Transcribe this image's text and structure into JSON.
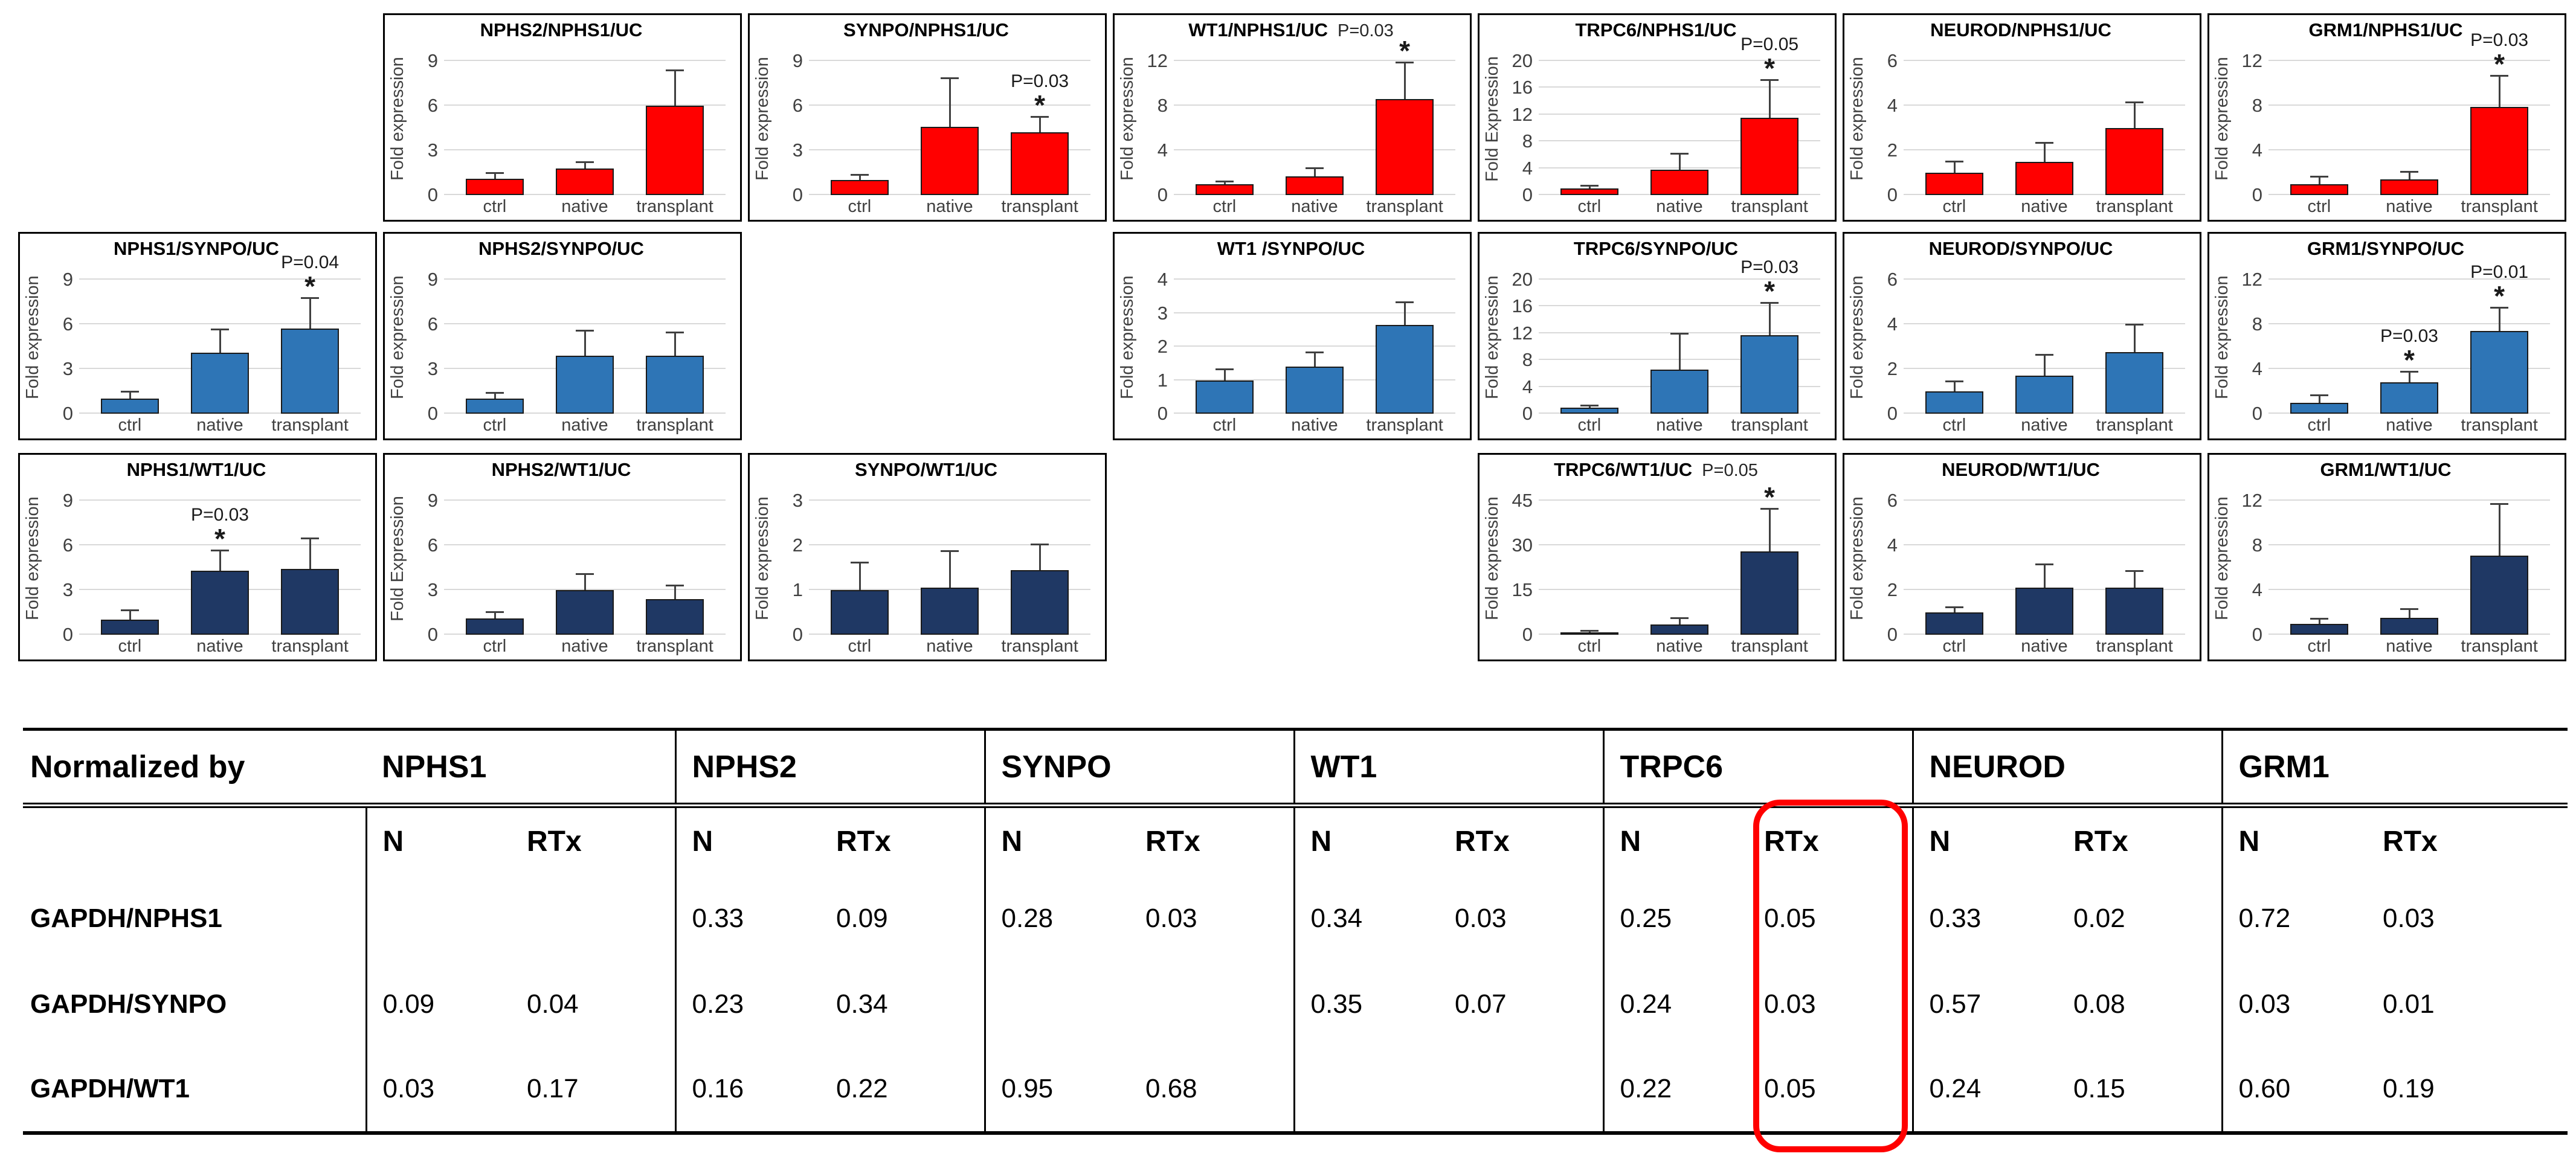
{
  "figure": {
    "description": "Fold expression bar charts of podocyte genes normalized by NPHS1 (red), SYNPO (blue) and WT1 (navy), with P-value summary table",
    "colors": {
      "nphs1_row": "#FF0000",
      "synpo_row": "#2E75B6",
      "wt1_row": "#1F3864",
      "highlight": "#FF0000",
      "gridline": "#D9D9D9"
    }
  },
  "chart_data": [
    {
      "type": "bar",
      "title": "NPHS2/NPHS1/UC",
      "title_p": "",
      "ylabel": "Fold expression",
      "yticks": [
        0,
        3,
        6,
        9
      ],
      "color": "#FF0000",
      "grid": {
        "row": 0,
        "col": 1
      },
      "categories": [
        "ctrl",
        "native",
        "transplant"
      ],
      "bars": [
        {
          "value": 1.1,
          "err": 0.3
        },
        {
          "value": 1.8,
          "err": 0.35
        },
        {
          "value": 6.0,
          "err": 2.3
        }
      ]
    },
    {
      "type": "bar",
      "title": "SYNPO/NPHS1/UC",
      "title_p": "",
      "ylabel": "Fold expression",
      "yticks": [
        0,
        3,
        6,
        9
      ],
      "color": "#FF0000",
      "grid": {
        "row": 0,
        "col": 2
      },
      "categories": [
        "ctrl",
        "native",
        "transplant"
      ],
      "bars": [
        {
          "value": 1.0,
          "err": 0.3
        },
        {
          "value": 4.6,
          "err": 3.2
        },
        {
          "value": 4.2,
          "err": 1.0,
          "p": "P=0.03",
          "star": true
        }
      ]
    },
    {
      "type": "bar",
      "title": "WT1/NPHS1/UC",
      "title_p": "P=0.03",
      "ylabel": "Fold expression",
      "yticks": [
        0,
        4,
        8,
        12
      ],
      "color": "#FF0000",
      "grid": {
        "row": 0,
        "col": 3
      },
      "categories": [
        "ctrl",
        "native",
        "transplant"
      ],
      "bars": [
        {
          "value": 1.0,
          "err": 0.15
        },
        {
          "value": 1.7,
          "err": 0.6
        },
        {
          "value": 8.6,
          "err": 3.2,
          "star": true
        }
      ]
    },
    {
      "type": "bar",
      "title": "TRPC6/NPHS1/UC",
      "title_p": "",
      "ylabel": "Fold Expression",
      "yticks": [
        0,
        4,
        8,
        12,
        16,
        20
      ],
      "color": "#FF0000",
      "grid": {
        "row": 0,
        "col": 4
      },
      "categories": [
        "ctrl",
        "native",
        "transplant"
      ],
      "bars": [
        {
          "value": 1.0,
          "err": 0.3
        },
        {
          "value": 3.8,
          "err": 2.2
        },
        {
          "value": 11.5,
          "err": 5.5,
          "p": "P=0.05",
          "star": true
        }
      ]
    },
    {
      "type": "bar",
      "title": "NEUROD/NPHS1/UC",
      "title_p": "",
      "ylabel": "Fold expression",
      "yticks": [
        0,
        2,
        4,
        6
      ],
      "color": "#FF0000",
      "grid": {
        "row": 0,
        "col": 5
      },
      "categories": [
        "ctrl",
        "native",
        "transplant"
      ],
      "bars": [
        {
          "value": 1.0,
          "err": 0.45
        },
        {
          "value": 1.5,
          "err": 0.8
        },
        {
          "value": 3.0,
          "err": 1.1
        }
      ]
    },
    {
      "type": "bar",
      "title": "GRM1/NPHS1/UC",
      "title_p": "",
      "ylabel": "Fold expression",
      "yticks": [
        0,
        4,
        8,
        12
      ],
      "color": "#FF0000",
      "grid": {
        "row": 0,
        "col": 6
      },
      "categories": [
        "ctrl",
        "native",
        "transplant"
      ],
      "bars": [
        {
          "value": 1.0,
          "err": 0.55
        },
        {
          "value": 1.4,
          "err": 0.6
        },
        {
          "value": 7.9,
          "err": 2.7,
          "p": "P=0.03",
          "star": true
        }
      ]
    },
    {
      "type": "bar",
      "title": "NPHS1/SYNPO/UC",
      "title_p": "",
      "ylabel": "Fold expression",
      "yticks": [
        0,
        3,
        6,
        9
      ],
      "color": "#2E75B6",
      "grid": {
        "row": 1,
        "col": 0
      },
      "categories": [
        "ctrl",
        "native",
        "transplant"
      ],
      "bars": [
        {
          "value": 1.0,
          "err": 0.4
        },
        {
          "value": 4.1,
          "err": 1.5
        },
        {
          "value": 5.7,
          "err": 2.0,
          "p": "P=0.04",
          "star": true
        }
      ]
    },
    {
      "type": "bar",
      "title": "NPHS2/SYNPO/UC",
      "title_p": "",
      "ylabel": "Fold expression",
      "yticks": [
        0,
        3,
        6,
        9
      ],
      "color": "#2E75B6",
      "grid": {
        "row": 1,
        "col": 1
      },
      "categories": [
        "ctrl",
        "native",
        "transplant"
      ],
      "bars": [
        {
          "value": 1.0,
          "err": 0.35
        },
        {
          "value": 3.9,
          "err": 1.6
        },
        {
          "value": 3.9,
          "err": 1.5
        }
      ]
    },
    {
      "type": "bar",
      "title": "WT1 /SYNPO/UC",
      "title_p": "",
      "ylabel": "Fold expression",
      "yticks": [
        0,
        1,
        2,
        3,
        4
      ],
      "color": "#2E75B6",
      "grid": {
        "row": 1,
        "col": 3
      },
      "categories": [
        "ctrl",
        "native",
        "transplant"
      ],
      "bars": [
        {
          "value": 1.0,
          "err": 0.3
        },
        {
          "value": 1.4,
          "err": 0.4
        },
        {
          "value": 2.65,
          "err": 0.65
        }
      ]
    },
    {
      "type": "bar",
      "title": "TRPC6/SYNPO/UC",
      "title_p": "",
      "ylabel": "Fold expression",
      "yticks": [
        0,
        4,
        8,
        12,
        16,
        20
      ],
      "color": "#2E75B6",
      "grid": {
        "row": 1,
        "col": 4
      },
      "categories": [
        "ctrl",
        "native",
        "transplant"
      ],
      "bars": [
        {
          "value": 0.9,
          "err": 0.2
        },
        {
          "value": 6.6,
          "err": 5.2
        },
        {
          "value": 11.7,
          "err": 4.7,
          "p": "P=0.03",
          "star": true
        }
      ]
    },
    {
      "type": "bar",
      "title": "NEUROD/SYNPO/UC",
      "title_p": "",
      "ylabel": "Fold expression",
      "yticks": [
        0,
        2,
        4,
        6
      ],
      "color": "#2E75B6",
      "grid": {
        "row": 1,
        "col": 5
      },
      "categories": [
        "ctrl",
        "native",
        "transplant"
      ],
      "bars": [
        {
          "value": 1.0,
          "err": 0.4
        },
        {
          "value": 1.7,
          "err": 0.9
        },
        {
          "value": 2.75,
          "err": 1.2
        }
      ]
    },
    {
      "type": "bar",
      "title": "GRM1/SYNPO/UC",
      "title_p": "",
      "ylabel": "Fold expression",
      "yticks": [
        0,
        4,
        8,
        12
      ],
      "color": "#2E75B6",
      "grid": {
        "row": 1,
        "col": 6
      },
      "categories": [
        "ctrl",
        "native",
        "transplant"
      ],
      "bars": [
        {
          "value": 1.0,
          "err": 0.55
        },
        {
          "value": 2.8,
          "err": 0.9,
          "p": "P=0.03",
          "star": true
        },
        {
          "value": 7.4,
          "err": 2.0,
          "p": "P=0.01",
          "star": true
        }
      ]
    },
    {
      "type": "bar",
      "title": "NPHS1/WT1/UC",
      "title_p": "",
      "ylabel": "Fold expression",
      "yticks": [
        0,
        3,
        6,
        9
      ],
      "color": "#1F3864",
      "grid": {
        "row": 2,
        "col": 0
      },
      "categories": [
        "ctrl",
        "native",
        "transplant"
      ],
      "bars": [
        {
          "value": 1.0,
          "err": 0.6
        },
        {
          "value": 4.3,
          "err": 1.3,
          "p": "P=0.03",
          "star": true
        },
        {
          "value": 4.4,
          "err": 2.0
        }
      ]
    },
    {
      "type": "bar",
      "title": "NPHS2/WT1/UC",
      "title_p": "",
      "ylabel": "Fold Expression",
      "yticks": [
        0,
        3,
        6,
        9
      ],
      "color": "#1F3864",
      "grid": {
        "row": 2,
        "col": 1
      },
      "categories": [
        "ctrl",
        "native",
        "transplant"
      ],
      "bars": [
        {
          "value": 1.1,
          "err": 0.35
        },
        {
          "value": 3.0,
          "err": 1.0
        },
        {
          "value": 2.4,
          "err": 0.85
        }
      ]
    },
    {
      "type": "bar",
      "title": "SYNPO/WT1/UC",
      "title_p": "",
      "ylabel": "Fold expression",
      "yticks": [
        0,
        1,
        2,
        3
      ],
      "color": "#1F3864",
      "grid": {
        "row": 2,
        "col": 2
      },
      "categories": [
        "ctrl",
        "native",
        "transplant"
      ],
      "bars": [
        {
          "value": 1.0,
          "err": 0.6
        },
        {
          "value": 1.05,
          "err": 0.8
        },
        {
          "value": 1.45,
          "err": 0.55
        }
      ]
    },
    {
      "type": "bar",
      "title": "TRPC6/WT1/UC",
      "title_p": "P=0.05",
      "ylabel": "Fold expression",
      "yticks": [
        0,
        15,
        30,
        45
      ],
      "color": "#1F3864",
      "grid": {
        "row": 2,
        "col": 4
      },
      "categories": [
        "ctrl",
        "native",
        "transplant"
      ],
      "bars": [
        {
          "value": 0.8,
          "err": 0.15
        },
        {
          "value": 3.5,
          "err": 1.8
        },
        {
          "value": 28,
          "err": 14,
          "star": true
        }
      ]
    },
    {
      "type": "bar",
      "title": "NEUROD/WT1/UC",
      "title_p": "",
      "ylabel": "Fold expression",
      "yticks": [
        0,
        2,
        4,
        6
      ],
      "color": "#1F3864",
      "grid": {
        "row": 2,
        "col": 5
      },
      "categories": [
        "ctrl",
        "native",
        "transplant"
      ],
      "bars": [
        {
          "value": 1.0,
          "err": 0.2
        },
        {
          "value": 2.1,
          "err": 1.0
        },
        {
          "value": 2.1,
          "err": 0.7
        }
      ]
    },
    {
      "type": "bar",
      "title": "GRM1/WT1/UC",
      "title_p": "",
      "ylabel": "Fold expression",
      "yticks": [
        0,
        4,
        8,
        12
      ],
      "color": "#1F3864",
      "grid": {
        "row": 2,
        "col": 6
      },
      "categories": [
        "ctrl",
        "native",
        "transplant"
      ],
      "bars": [
        {
          "value": 1.0,
          "err": 0.35
        },
        {
          "value": 1.5,
          "err": 0.7
        },
        {
          "value": 7.1,
          "err": 4.5
        }
      ]
    }
  ],
  "table": {
    "corner_label": "Normalized by",
    "groups": [
      "NPHS1",
      "NPHS2",
      "SYNPO",
      "WT1",
      "TRPC6",
      "NEUROD",
      "GRM1"
    ],
    "subheaders": [
      "N",
      "RTx"
    ],
    "rows": [
      {
        "label": "GAPDH/NPHS1",
        "values": [
          [
            "",
            ""
          ],
          [
            "0.33",
            "0.09"
          ],
          [
            "0.28",
            "0.03"
          ],
          [
            "0.34",
            "0.03"
          ],
          [
            "0.25",
            "0.05"
          ],
          [
            "0.33",
            "0.02"
          ],
          [
            "0.72",
            "0.03"
          ]
        ]
      },
      {
        "label": "GAPDH/SYNPO",
        "values": [
          [
            "0.09",
            "0.04"
          ],
          [
            "0.23",
            "0.34"
          ],
          [
            "",
            ""
          ],
          [
            "0.35",
            "0.07"
          ],
          [
            "0.24",
            "0.03"
          ],
          [
            "0.57",
            "0.08"
          ],
          [
            "0.03",
            "0.01"
          ]
        ]
      },
      {
        "label": "GAPDH/WT1",
        "values": [
          [
            "0.03",
            "0.17"
          ],
          [
            "0.16",
            "0.22"
          ],
          [
            "0.95",
            "0.68"
          ],
          [
            "",
            ""
          ],
          [
            "0.22",
            "0.05"
          ],
          [
            "0.24",
            "0.15"
          ],
          [
            "0.60",
            "0.19"
          ]
        ]
      }
    ],
    "highlight": {
      "group": "TRPC6",
      "column": "RTx",
      "color": "#FF0000"
    }
  }
}
